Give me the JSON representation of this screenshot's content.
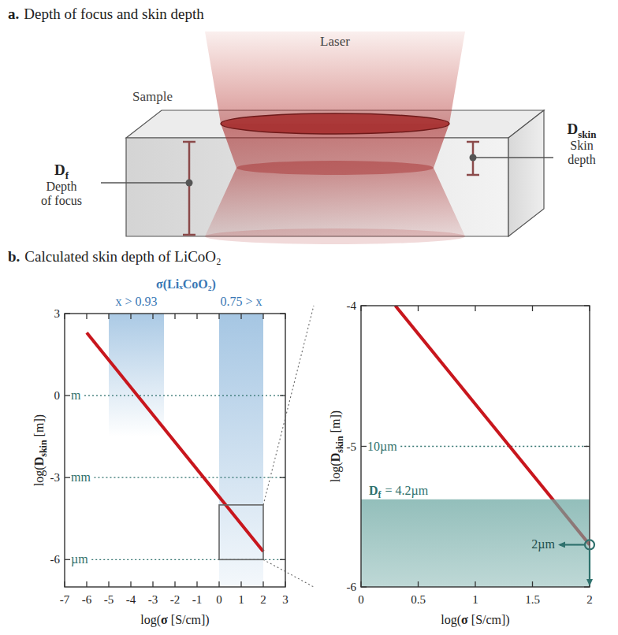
{
  "panel_a": {
    "letter": "a.",
    "title": "Depth of focus and skin depth",
    "laser": "Laser",
    "sample": "Sample",
    "depth_of_focus": {
      "symbol": "D",
      "subscript": "f",
      "lines": [
        "Depth",
        "of focus"
      ]
    },
    "skin_depth": {
      "symbol": "D",
      "subscript": "skin",
      "lines": [
        "Skin",
        "depth"
      ]
    }
  },
  "panel_b": {
    "letter": "b.",
    "title": "Calculated skin depth of LiCoO₂"
  },
  "chart_data": [
    {
      "type": "line",
      "x": [
        -6,
        2
      ],
      "values": [
        2.3,
        -5.7
      ],
      "color": "#c8161d",
      "xlim": [
        -7,
        3
      ],
      "xticks": [
        -7,
        -6,
        -5,
        -4,
        -3,
        -2,
        -1,
        0,
        1,
        2,
        3
      ],
      "ylim": [
        -7,
        3
      ],
      "yticks": [
        -6,
        -3,
        0,
        3
      ],
      "xlabel": {
        "prefix": "log(",
        "symbol": "σ",
        "suffix": " [S/cm])"
      },
      "ylabel": {
        "prefix": "log(",
        "symbol": "D",
        "subscript": "skin",
        "suffix": " [m])"
      },
      "regions_title": "σ(LiₓCoO₂)",
      "regions": [
        {
          "label": "x > 0.93",
          "x_range": [
            -5,
            -2.5
          ]
        },
        {
          "label": "0.75 > x",
          "x_range": [
            0,
            2
          ]
        }
      ],
      "reference_lines": [
        {
          "value": 0,
          "label": "m"
        },
        {
          "value": -3,
          "label": "mm"
        },
        {
          "value": -6,
          "label": "µm"
        }
      ]
    },
    {
      "type": "line",
      "x": [
        0.3,
        2
      ],
      "values": [
        -4,
        -5.7
      ],
      "color": "#c8161d",
      "xlim": [
        0,
        2
      ],
      "xticks": [
        0,
        0.5,
        1,
        1.5,
        2
      ],
      "ylim": [
        -6,
        -4
      ],
      "yticks": [
        -6,
        -5,
        -4
      ],
      "xlabel": {
        "prefix": "log(",
        "symbol": "σ",
        "suffix": " [S/cm])"
      },
      "ylabel": {
        "prefix": "log(",
        "symbol": "D",
        "subscript": "skin",
        "suffix": " [m])"
      },
      "reference_lines": [
        {
          "value": -5,
          "label": "10µm"
        }
      ],
      "band": {
        "y_range": [
          -6,
          -5.377
        ],
        "symbol": "D",
        "subscript": "f",
        "label": "= 4.2µm"
      },
      "point": {
        "x": 2,
        "y": -5.7,
        "label": "2µm"
      }
    }
  ]
}
